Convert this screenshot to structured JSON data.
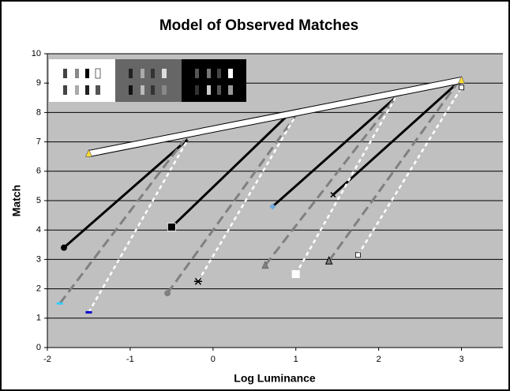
{
  "chart_data": {
    "type": "line",
    "title": "Model of Observed Matches",
    "x_label": "Log Luminance",
    "y_label": "Match",
    "xlim": [
      -2,
      3.5
    ],
    "xticks": [
      -2,
      -1,
      0,
      1,
      2,
      3
    ],
    "ylim": [
      0,
      10
    ],
    "yticks": [
      0,
      1,
      2,
      3,
      4,
      5,
      6,
      7,
      8,
      9,
      10
    ],
    "grid": true,
    "background": "#c0c0c0",
    "series": [
      {
        "color": "#000000",
        "style": "solid",
        "marker": "circle",
        "marker_color": "#000000",
        "marker_ends": "start",
        "x": [
          -1.8,
          -0.3
        ],
        "values": [
          3.4,
          7.1
        ]
      },
      {
        "color": "#000000",
        "style": "solid",
        "marker": "grid-square",
        "marker_color": "#000000",
        "marker_ends": "start",
        "x": [
          -0.5,
          0.9
        ],
        "values": [
          4.1,
          7.9
        ]
      },
      {
        "color": "#000000",
        "style": "solid",
        "marker": "diamond",
        "marker_color": "#6fa8dc",
        "marker_ends": "start",
        "x": [
          0.72,
          2.2
        ],
        "values": [
          4.8,
          8.5
        ]
      },
      {
        "color": "#000000",
        "style": "solid",
        "marker": "x",
        "marker_color": "#000000",
        "marker_ends": "start",
        "x": [
          1.45,
          2.95
        ],
        "values": [
          5.2,
          9.0
        ]
      },
      {
        "color": "#808080",
        "style": "dash",
        "marker": "dash",
        "marker_color": "#33ccff",
        "marker_ends": "start",
        "x": [
          -1.85,
          -0.35
        ],
        "values": [
          1.5,
          7.05
        ]
      },
      {
        "color": "#808080",
        "style": "dash",
        "marker": "circle",
        "marker_color": "#808080",
        "marker_ends": "start",
        "x": [
          -0.55,
          1.0
        ],
        "values": [
          1.85,
          7.9
        ]
      },
      {
        "color": "#808080",
        "style": "dash",
        "marker": "triangle",
        "marker_color": "#808080",
        "marker_ends": "start",
        "x": [
          0.63,
          2.2
        ],
        "values": [
          2.8,
          8.5
        ]
      },
      {
        "color": "#808080",
        "style": "dash",
        "marker": "triangle-outline",
        "marker_color": "#808080",
        "marker_ends": "start",
        "x": [
          1.4,
          2.95
        ],
        "values": [
          2.95,
          9.0
        ]
      },
      {
        "color": "#ffffff",
        "style": "dot",
        "marker": "dash",
        "marker_color": "#0000cc",
        "marker_ends": "start",
        "x": [
          -1.5,
          -0.3
        ],
        "values": [
          1.2,
          7.1
        ]
      },
      {
        "color": "#ffffff",
        "style": "dot",
        "marker": "star",
        "marker_color": "#000000",
        "marker_ends": "start",
        "x": [
          -0.18,
          1.0
        ],
        "values": [
          2.25,
          7.9
        ]
      },
      {
        "color": "#ffffff",
        "style": "dot",
        "marker": "square",
        "marker_color": "#ffffff",
        "marker_ends": "start",
        "x": [
          1.0,
          2.2
        ],
        "values": [
          2.5,
          8.5
        ]
      },
      {
        "color": "#ffffff",
        "style": "dot",
        "marker": "square-outline",
        "marker_color": "#ffffff",
        "marker_ends": "both",
        "x": [
          1.75,
          3.0
        ],
        "values": [
          3.15,
          8.85
        ]
      },
      {
        "color": "#ffffff",
        "style": "thick",
        "marker": "triangle",
        "marker_color": "#ffdd33",
        "marker_ends": "both",
        "x": [
          -1.5,
          3.0
        ],
        "values": [
          6.6,
          9.1
        ]
      }
    ]
  }
}
